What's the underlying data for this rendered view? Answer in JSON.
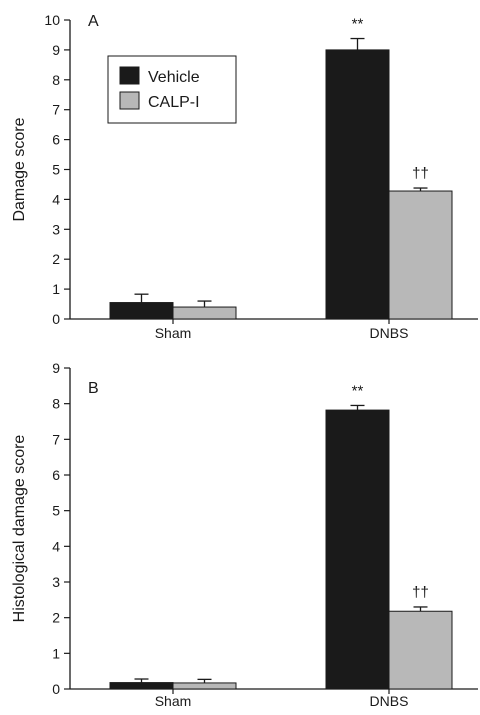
{
  "colors": {
    "vehicle": "#1a1a1a",
    "calp": "#b8b8b8",
    "axis": "#1a1a1a"
  },
  "chart_data": [
    {
      "type": "bar",
      "panel_label": "A",
      "ylabel": "Damage score",
      "xlabel": "",
      "categories": [
        "Sham",
        "DNBS"
      ],
      "ylim": [
        0,
        10
      ],
      "yticks": [
        0,
        1,
        2,
        3,
        4,
        5,
        6,
        7,
        8,
        9,
        10
      ],
      "series": [
        {
          "name": "Vehicle",
          "values": [
            0.55,
            9.0
          ],
          "errors": [
            0.28,
            0.38
          ],
          "annotations": [
            "",
            "**"
          ]
        },
        {
          "name": "CALP-I",
          "values": [
            0.4,
            4.28
          ],
          "errors": [
            0.2,
            0.1
          ],
          "annotations": [
            "",
            "††"
          ]
        }
      ],
      "legend": {
        "position": "top-left",
        "entries": [
          "Vehicle",
          "CALP-I"
        ]
      },
      "grid": false
    },
    {
      "type": "bar",
      "panel_label": "B",
      "ylabel": "Histological damage score",
      "xlabel": "",
      "categories": [
        "Sham",
        "DNBS"
      ],
      "ylim": [
        0,
        9
      ],
      "yticks": [
        0,
        1,
        2,
        3,
        4,
        5,
        6,
        7,
        8,
        9
      ],
      "series": [
        {
          "name": "Vehicle",
          "values": [
            0.18,
            7.82
          ],
          "errors": [
            0.1,
            0.13
          ],
          "annotations": [
            "",
            "**"
          ]
        },
        {
          "name": "CALP-I",
          "values": [
            0.17,
            2.18
          ],
          "errors": [
            0.1,
            0.12
          ],
          "annotations": [
            "",
            "††"
          ]
        }
      ],
      "grid": false
    }
  ]
}
